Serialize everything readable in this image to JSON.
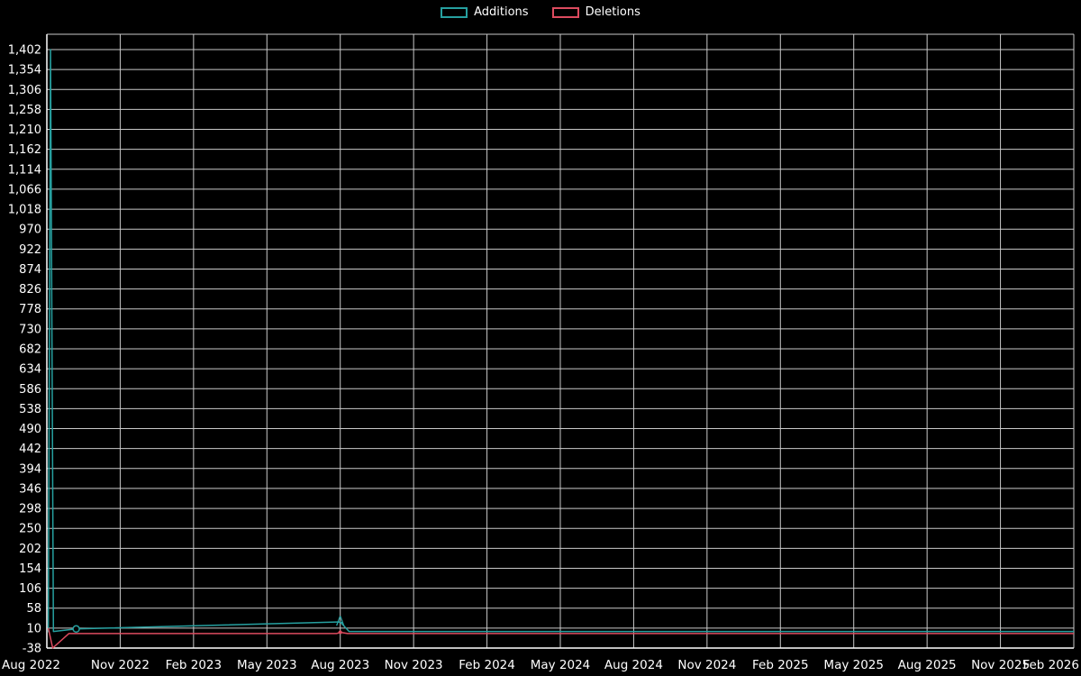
{
  "chart_data": {
    "type": "line",
    "title": "",
    "legend_position": "top-center",
    "grid": true,
    "background_color": "#000000",
    "axis_text_color": "#ffffff",
    "legend": [
      {
        "label": "Additions",
        "color": "#26a0a0"
      },
      {
        "label": "Deletions",
        "color": "#dd4b5f"
      }
    ],
    "x_tick_labels": [
      "Aug 2022",
      "Nov 2022",
      "Feb 2023",
      "May 2023",
      "Aug 2023",
      "Nov 2023",
      "Feb 2024",
      "May 2024",
      "Aug 2024",
      "Nov 2024",
      "Feb 2025",
      "May 2025",
      "Aug 2025",
      "Nov 2025",
      "Feb 2026"
    ],
    "y_tick_labels": [
      "1,402",
      "1,354",
      "1,306",
      "1,258",
      "1,210",
      "1,162",
      "1,114",
      "1,066",
      "1,018",
      "970",
      "922",
      "874",
      "826",
      "778",
      "730",
      "682",
      "634",
      "586",
      "538",
      "490",
      "442",
      "394",
      "346",
      "298",
      "250",
      "202",
      "154",
      "106",
      "58",
      "10",
      "-38"
    ],
    "ylim": [
      -38,
      1402
    ],
    "x_axis_unit": "tick index, 1 tick = 3 months",
    "series": [
      {
        "name": "Additions",
        "color": "#26a0a0",
        "points_tick_units": [
          [
            0.02,
            0
          ],
          [
            0.05,
            1402
          ],
          [
            0.09,
            2
          ],
          [
            0.4,
            8
          ],
          [
            4.0,
            25
          ],
          [
            4.12,
            2
          ],
          [
            14.0,
            2
          ]
        ],
        "markers": [
          {
            "x": 0.4,
            "y": 8,
            "type": "circle"
          },
          {
            "x": 4.0,
            "y": 25,
            "type": "letter",
            "text": "A"
          }
        ]
      },
      {
        "name": "Deletions",
        "color": "#dd4b5f",
        "points_tick_units": [
          [
            0.02,
            10
          ],
          [
            0.08,
            -38
          ],
          [
            0.3,
            -3
          ],
          [
            3.95,
            -3
          ],
          [
            4.0,
            0
          ],
          [
            4.1,
            -3
          ],
          [
            14.0,
            -3
          ]
        ],
        "markers": [
          {
            "x": 4.0,
            "y": 0,
            "type": "dot"
          }
        ]
      }
    ]
  }
}
